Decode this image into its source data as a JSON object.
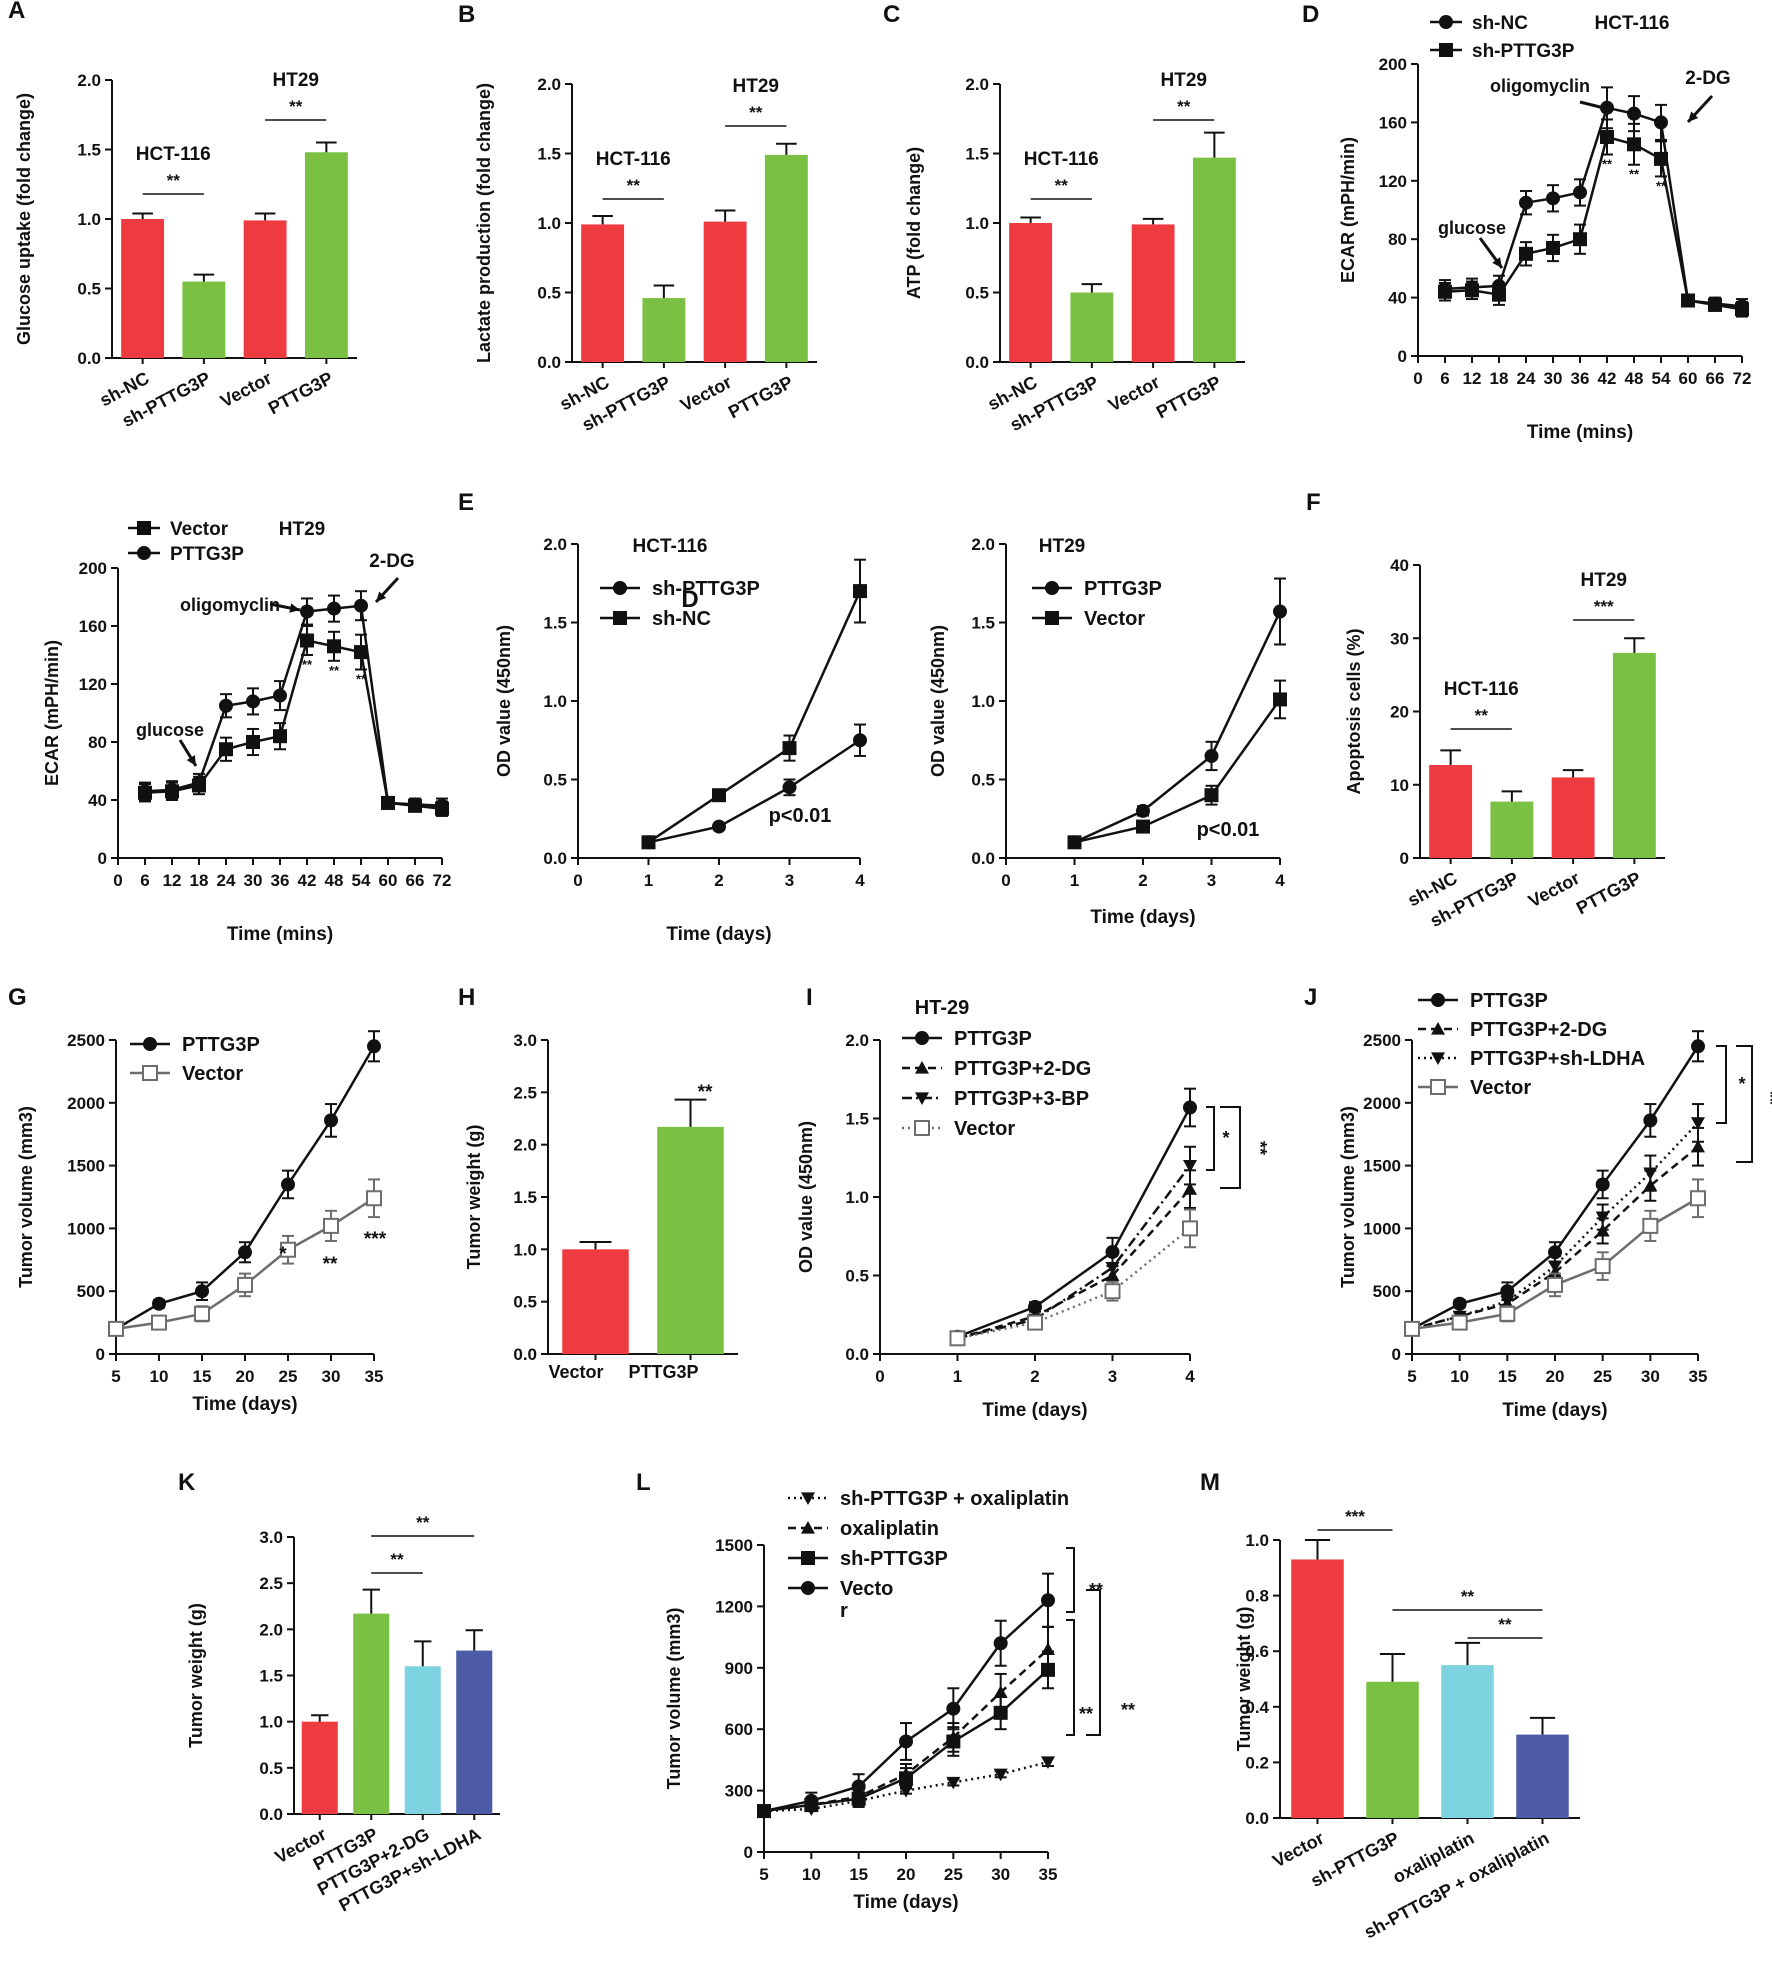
{
  "colors": {
    "red": "#ee3b3f",
    "green": "#7ac143",
    "cyan": "#7ed3e0",
    "navy": "#4d5aa6",
    "black": "#111111",
    "gray": "#6d6d6d"
  },
  "chart_data": [
    {
      "id": "A",
      "type": "bar",
      "panel_letter": "A",
      "ylabel": "Glucose uptake (fold change)",
      "categories": [
        "sh-NC",
        "sh-PTTG3P",
        "Vector",
        "PTTG3P"
      ],
      "values": [
        1.0,
        0.55,
        0.99,
        1.48
      ],
      "errors": [
        0.04,
        0.05,
        0.05,
        0.07
      ],
      "colors": [
        "#ee3b3f",
        "#7ac143",
        "#ee3b3f",
        "#7ac143"
      ],
      "ylim": [
        0,
        2.0
      ],
      "yticks": [
        "0.0",
        "0.5",
        "1.0",
        "1.5",
        "2.0"
      ],
      "group_labels": [
        "HCT-116",
        "HT29"
      ],
      "sig": [
        "**",
        "**"
      ]
    },
    {
      "id": "B",
      "type": "bar",
      "panel_letter": "B",
      "ylabel": "Lactate production (fold change)",
      "categories": [
        "sh-NC",
        "sh-PTTG3P",
        "Vector",
        "PTTG3P"
      ],
      "values": [
        0.99,
        0.46,
        1.01,
        1.49
      ],
      "errors": [
        0.06,
        0.09,
        0.08,
        0.08
      ],
      "colors": [
        "#ee3b3f",
        "#7ac143",
        "#ee3b3f",
        "#7ac143"
      ],
      "ylim": [
        0,
        2.0
      ],
      "yticks": [
        "0.0",
        "0.5",
        "1.0",
        "1.5",
        "2.0"
      ],
      "group_labels": [
        "HCT-116",
        "HT29"
      ],
      "sig": [
        "**",
        "**"
      ]
    },
    {
      "id": "C",
      "type": "bar",
      "panel_letter": "C",
      "ylabel": "ATP (fold change)",
      "categories": [
        "sh-NC",
        "sh-PTTG3P",
        "Vector",
        "PTTG3P"
      ],
      "values": [
        1.0,
        0.5,
        0.99,
        1.47
      ],
      "errors": [
        0.04,
        0.06,
        0.04,
        0.18
      ],
      "colors": [
        "#ee3b3f",
        "#7ac143",
        "#ee3b3f",
        "#7ac143"
      ],
      "ylim": [
        0,
        2.0
      ],
      "yticks": [
        "0.0",
        "0.5",
        "1.0",
        "1.5",
        "2.0"
      ],
      "group_labels": [
        "HCT-116",
        "HT29"
      ],
      "sig": [
        "**",
        "**"
      ]
    },
    {
      "id": "D1",
      "type": "line",
      "panel_letter": "D",
      "title": "HCT-116",
      "xlabel": "Time (mins)",
      "ylabel": "ECAR (mPH/min)",
      "x": [
        6,
        12,
        18,
        24,
        30,
        36,
        42,
        48,
        54,
        60,
        66,
        72
      ],
      "xlim": [
        0,
        72
      ],
      "xticks": [
        "0",
        "6",
        "12",
        "18",
        "24",
        "30",
        "36",
        "42",
        "48",
        "54",
        "60",
        "66",
        "72"
      ],
      "ylim": [
        0,
        200
      ],
      "yticks": [
        "0",
        "40",
        "80",
        "120",
        "160",
        "200"
      ],
      "series": [
        {
          "name": "sh-NC",
          "marker": "circle",
          "values": [
            46,
            47,
            48,
            105,
            108,
            112,
            170,
            166,
            160,
            38,
            36,
            34
          ],
          "errors": [
            6,
            6,
            7,
            8,
            9,
            9,
            14,
            12,
            12,
            4,
            4,
            5
          ]
        },
        {
          "name": "sh-PTTG3P",
          "marker": "square",
          "values": [
            44,
            45,
            42,
            70,
            74,
            80,
            150,
            145,
            135,
            38,
            35,
            32
          ],
          "errors": [
            6,
            6,
            7,
            8,
            9,
            10,
            12,
            14,
            12,
            4,
            4,
            5
          ]
        }
      ],
      "annotations": [
        "glucose",
        "oligomyclin",
        "2-DG"
      ],
      "sig": [
        "**",
        "**",
        "**"
      ]
    },
    {
      "id": "D2",
      "type": "line",
      "title": "HT29",
      "xlabel": "Time (mins)",
      "ylabel": "ECAR (mPH/min)",
      "x": [
        6,
        12,
        18,
        24,
        30,
        36,
        42,
        48,
        54,
        60,
        66,
        72
      ],
      "xlim": [
        0,
        72
      ],
      "xticks": [
        "0",
        "6",
        "12",
        "18",
        "24",
        "30",
        "36",
        "42",
        "48",
        "54",
        "60",
        "66",
        "72"
      ],
      "ylim": [
        0,
        200
      ],
      "yticks": [
        "0",
        "40",
        "80",
        "120",
        "160",
        "200"
      ],
      "series": [
        {
          "name": "Vector",
          "marker": "square",
          "values": [
            45,
            46,
            50,
            75,
            80,
            84,
            150,
            146,
            142,
            38,
            36,
            34
          ],
          "errors": [
            6,
            6,
            6,
            8,
            9,
            9,
            10,
            10,
            12,
            4,
            4,
            5
          ]
        },
        {
          "name": "PTTG3P",
          "marker": "circle",
          "values": [
            46,
            47,
            52,
            105,
            108,
            112,
            170,
            172,
            174,
            38,
            37,
            36
          ],
          "errors": [
            6,
            6,
            6,
            8,
            9,
            10,
            9,
            9,
            10,
            4,
            4,
            5
          ]
        }
      ],
      "annotations": [
        "glucose",
        "oligomyclin",
        "2-DG"
      ],
      "sig": [
        "**",
        "**",
        "**"
      ]
    },
    {
      "id": "E1",
      "type": "line",
      "panel_letter": "E",
      "title": "HCT-116",
      "xlabel": "Time (days)",
      "ylabel": "OD value (450nm)",
      "x": [
        1,
        2,
        3,
        4
      ],
      "xlim": [
        0,
        4
      ],
      "xticks": [
        "0",
        "1",
        "2",
        "3",
        "4"
      ],
      "ylim": [
        0,
        2.0
      ],
      "yticks": [
        "0.0",
        "0.5",
        "1.0",
        "1.5",
        "2.0"
      ],
      "series": [
        {
          "name": "sh-PTTG3P",
          "marker": "circle",
          "values": [
            0.1,
            0.2,
            0.45,
            0.75
          ],
          "errors": [
            0.02,
            0.02,
            0.05,
            0.1
          ]
        },
        {
          "name": "sh-NC",
          "marker": "square",
          "values": [
            0.1,
            0.4,
            0.7,
            1.7
          ],
          "errors": [
            0.02,
            0.03,
            0.08,
            0.2
          ]
        }
      ],
      "stray_label": "D",
      "p_label": "p<0.01"
    },
    {
      "id": "E2",
      "type": "line",
      "title": "HT29",
      "xlabel": "Time (days)",
      "ylabel": "OD value (450nm)",
      "x": [
        1,
        2,
        3,
        4
      ],
      "xlim": [
        0,
        4
      ],
      "xticks": [
        "0",
        "1",
        "2",
        "3",
        "4"
      ],
      "ylim": [
        0,
        2.0
      ],
      "yticks": [
        "0.0",
        "0.5",
        "1.0",
        "1.5",
        "2.0"
      ],
      "series": [
        {
          "name": "PTTG3P",
          "marker": "circle",
          "values": [
            0.1,
            0.3,
            0.65,
            1.57
          ],
          "errors": [
            0.02,
            0.03,
            0.09,
            0.21
          ]
        },
        {
          "name": "Vector",
          "marker": "square",
          "values": [
            0.1,
            0.2,
            0.4,
            1.01
          ],
          "errors": [
            0.02,
            0.02,
            0.06,
            0.12
          ]
        }
      ],
      "p_label": "p<0.01"
    },
    {
      "id": "F",
      "type": "bar",
      "panel_letter": "F",
      "ylabel": "Apoptosis cells (%)",
      "categories": [
        "sh-NC",
        "sh-PTTG3P",
        "Vector",
        "PTTG3P"
      ],
      "values": [
        12.7,
        7.7,
        11.0,
        28.0
      ],
      "errors": [
        2.0,
        1.4,
        1.0,
        2.0
      ],
      "colors": [
        "#ee3b3f",
        "#7ac143",
        "#ee3b3f",
        "#7ac143"
      ],
      "ylim": [
        0,
        40
      ],
      "yticks": [
        "0",
        "10",
        "20",
        "30",
        "40"
      ],
      "group_labels": [
        "HCT-116",
        "HT29"
      ],
      "sig": [
        "**",
        "***"
      ]
    },
    {
      "id": "G",
      "type": "line",
      "panel_letter": "G",
      "xlabel": "Time (days)",
      "ylabel": "Tumor volume (mm3)",
      "x": [
        5,
        10,
        15,
        20,
        25,
        30,
        35
      ],
      "xlim": [
        5,
        35
      ],
      "xticks": [
        "5",
        "10",
        "15",
        "20",
        "25",
        "30",
        "35"
      ],
      "ylim": [
        0,
        2500
      ],
      "yticks": [
        "0",
        "500",
        "1000",
        "1500",
        "2000",
        "2500"
      ],
      "series": [
        {
          "name": "PTTG3P",
          "marker": "circle",
          "values": [
            200,
            400,
            500,
            810,
            1350,
            1860,
            2450
          ],
          "errors": [
            20,
            30,
            70,
            80,
            110,
            130,
            120
          ]
        },
        {
          "name": "Vector",
          "marker": "open-square",
          "values": [
            200,
            250,
            320,
            550,
            830,
            1020,
            1240
          ],
          "errors": [
            20,
            30,
            60,
            90,
            110,
            120,
            150
          ]
        }
      ],
      "sig": [
        "*",
        "**",
        "***"
      ]
    },
    {
      "id": "H",
      "type": "bar",
      "panel_letter": "H",
      "ylabel": "Tumor weight (g)",
      "categories": [
        "Vector",
        "PTTG3P"
      ],
      "values": [
        1.0,
        2.17
      ],
      "errors": [
        0.07,
        0.26
      ],
      "colors": [
        "#ee3b3f",
        "#7ac143"
      ],
      "ylim": [
        0,
        3.0
      ],
      "yticks": [
        "0.0",
        "0.5",
        "1.0",
        "1.5",
        "2.0",
        "2.5",
        "3.0"
      ],
      "sig": [
        "**"
      ]
    },
    {
      "id": "I",
      "type": "line",
      "panel_letter": "I",
      "title": "HT-29",
      "xlabel": "Time (days)",
      "ylabel": "OD value (450nm)",
      "x": [
        1,
        2,
        3,
        4
      ],
      "xlim": [
        0,
        4
      ],
      "xticks": [
        "0",
        "1",
        "2",
        "3",
        "4"
      ],
      "ylim": [
        0,
        2.0
      ],
      "yticks": [
        "0.0",
        "0.5",
        "1.0",
        "1.5",
        "2.0"
      ],
      "series": [
        {
          "name": "PTTG3P",
          "marker": "circle",
          "style": "solid",
          "values": [
            0.11,
            0.3,
            0.65,
            1.57
          ],
          "errors": [
            0.03,
            0.03,
            0.09,
            0.12
          ]
        },
        {
          "name": "PTTG3P+2-DG",
          "marker": "triangle-up",
          "style": "dashed",
          "values": [
            0.1,
            0.24,
            0.5,
            1.05
          ],
          "errors": [
            0.03,
            0.03,
            0.08,
            0.12
          ]
        },
        {
          "name": "PTTG3P+3-BP",
          "marker": "triangle-down",
          "style": "dashdot",
          "values": [
            0.1,
            0.22,
            0.55,
            1.2
          ],
          "errors": [
            0.03,
            0.03,
            0.08,
            0.12
          ]
        },
        {
          "name": "Vector",
          "marker": "open-square",
          "style": "dotted",
          "values": [
            0.1,
            0.2,
            0.4,
            0.8
          ],
          "errors": [
            0.03,
            0.03,
            0.06,
            0.12
          ]
        }
      ],
      "sig": [
        "*",
        "**"
      ]
    },
    {
      "id": "J",
      "type": "line",
      "panel_letter": "J",
      "xlabel": "Time (days)",
      "ylabel": "Tumor volume (mm3)",
      "x": [
        5,
        10,
        15,
        20,
        25,
        30,
        35
      ],
      "xlim": [
        5,
        35
      ],
      "xticks": [
        "5",
        "10",
        "15",
        "20",
        "25",
        "30",
        "35"
      ],
      "ylim": [
        0,
        2500
      ],
      "yticks": [
        "0",
        "500",
        "1000",
        "1500",
        "2000",
        "2500"
      ],
      "series": [
        {
          "name": "PTTG3P",
          "marker": "circle",
          "style": "solid",
          "values": [
            200,
            400,
            500,
            810,
            1350,
            1860,
            2450
          ],
          "errors": [
            20,
            30,
            70,
            80,
            110,
            130,
            120
          ]
        },
        {
          "name": "PTTG3P+2-DG",
          "marker": "triangle-up",
          "style": "dashed",
          "values": [
            200,
            300,
            400,
            650,
            980,
            1340,
            1650
          ],
          "errors": [
            20,
            30,
            60,
            80,
            100,
            120,
            150
          ]
        },
        {
          "name": "PTTG3P+sh-LDHA",
          "marker": "triangle-down",
          "style": "dotted",
          "values": [
            200,
            300,
            420,
            700,
            1090,
            1440,
            1840
          ],
          "errors": [
            20,
            30,
            60,
            80,
            100,
            140,
            150
          ]
        },
        {
          "name": "Vector",
          "marker": "open-square",
          "style": "solid",
          "values": [
            200,
            250,
            320,
            550,
            700,
            1020,
            1240
          ],
          "errors": [
            20,
            30,
            60,
            90,
            110,
            120,
            150
          ]
        }
      ],
      "sig": [
        "*",
        "**"
      ]
    },
    {
      "id": "K",
      "type": "bar",
      "panel_letter": "K",
      "ylabel": "Tumor weight (g)",
      "categories": [
        "Vector",
        "PTTG3P",
        "PTTG3P+2-DG",
        "PTTG3P+sh-LDHA"
      ],
      "values": [
        1.0,
        2.17,
        1.6,
        1.77
      ],
      "errors": [
        0.07,
        0.26,
        0.27,
        0.22
      ],
      "colors": [
        "#ee3b3f",
        "#7ac143",
        "#7ed3e0",
        "#4d5aa6"
      ],
      "ylim": [
        0,
        3.0
      ],
      "yticks": [
        "0.0",
        "0.5",
        "1.0",
        "1.5",
        "2.0",
        "2.5",
        "3.0"
      ],
      "sig": [
        "**",
        "**"
      ]
    },
    {
      "id": "L",
      "type": "line",
      "panel_letter": "L",
      "xlabel": "Time (days)",
      "ylabel": "Tumor volume (mm3)",
      "x": [
        5,
        10,
        15,
        20,
        25,
        30,
        35
      ],
      "xlim": [
        5,
        35
      ],
      "xticks": [
        "5",
        "10",
        "15",
        "20",
        "25",
        "30",
        "35"
      ],
      "ylim": [
        0,
        1500
      ],
      "yticks": [
        "0",
        "300",
        "600",
        "900",
        "1200",
        "1500"
      ],
      "series": [
        {
          "name": "sh-PTTG3P + oxaliplatin",
          "marker": "triangle-down",
          "style": "dotted",
          "values": [
            200,
            210,
            250,
            300,
            340,
            380,
            440
          ],
          "errors": [
            10,
            10,
            15,
            15,
            15,
            15,
            20
          ]
        },
        {
          "name": "oxaliplatin",
          "marker": "triangle-up",
          "style": "dashed",
          "values": [
            200,
            230,
            270,
            380,
            560,
            780,
            990
          ],
          "errors": [
            15,
            30,
            40,
            50,
            70,
            90,
            110
          ]
        },
        {
          "name": "sh-PTTG3P",
          "marker": "square",
          "style": "solid",
          "values": [
            200,
            230,
            260,
            360,
            540,
            680,
            890
          ],
          "errors": [
            15,
            30,
            40,
            50,
            70,
            80,
            90
          ]
        },
        {
          "name": "Vecto\nr",
          "marker": "circle",
          "style": "solid",
          "values": [
            200,
            250,
            320,
            540,
            700,
            1020,
            1230
          ],
          "errors": [
            15,
            40,
            60,
            90,
            100,
            110,
            130
          ]
        }
      ],
      "sig": [
        "**",
        "**",
        "**"
      ]
    },
    {
      "id": "M",
      "type": "bar",
      "panel_letter": "M",
      "ylabel": "Tumor weight (g)",
      "categories": [
        "Vector",
        "sh-PTTG3P",
        "oxaliplatin",
        "sh-PTTG3P + oxaliplatin"
      ],
      "values": [
        0.93,
        0.49,
        0.55,
        0.3
      ],
      "errors": [
        0.07,
        0.1,
        0.08,
        0.06
      ],
      "colors": [
        "#ee3b3f",
        "#7ac143",
        "#7ed3e0",
        "#4d5aa6"
      ],
      "ylim": [
        0,
        1.0
      ],
      "yticks": [
        "0.0",
        "0.2",
        "0.4",
        "0.6",
        "0.8",
        "1.0"
      ],
      "sig": [
        "***",
        "**",
        "**"
      ]
    }
  ]
}
